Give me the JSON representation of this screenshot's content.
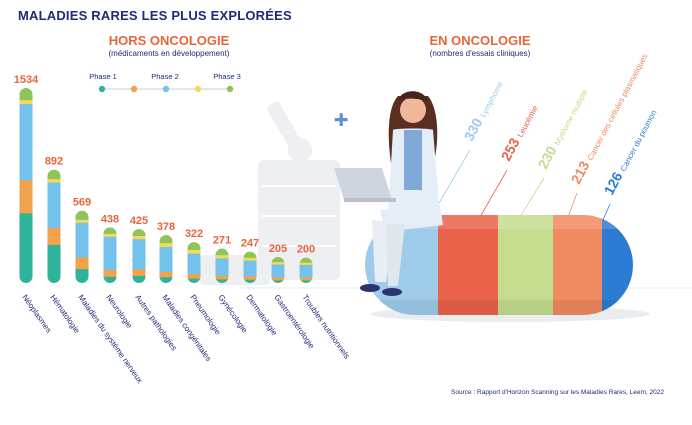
{
  "title": "MALADIES RARES LES PLUS EXPLORÉES",
  "source": "Source : Rapport d'Horizon Scanning sur les Maladies Rares, Leem, 2022",
  "colors": {
    "phase1": "#2fb39b",
    "phase2": "#f2a24b",
    "phase3": "#72c2ec",
    "phase4": "#f6d95a",
    "phase5": "#8ec45a",
    "value": "#e8653a",
    "text": "#1f2a7a"
  },
  "chart_data": [
    {
      "type": "bar",
      "title": "HORS ONCOLOGIE",
      "subtitle": "(médicaments en développement)",
      "legend": [
        "Phase 1",
        "Phase 2",
        "Phase 3"
      ],
      "legend_placement": "top",
      "categories": [
        "Néoplasmes",
        "Hématologie",
        "Maladies du système nerveux",
        "Neurologie",
        "Autres pathologies",
        "Maladies congénitales",
        "Pneumologie",
        "Gynécologie",
        "Dermatologie",
        "Gastroentérologie",
        "Troubles nutritionnels"
      ],
      "values": [
        1534,
        892,
        569,
        438,
        425,
        378,
        322,
        271,
        247,
        205,
        200
      ],
      "segments": [
        [
          0.36,
          0.17,
          0.39,
          0.02,
          0.06
        ],
        [
          0.34,
          0.15,
          0.4,
          0.03,
          0.08
        ],
        [
          0.2,
          0.16,
          0.48,
          0.04,
          0.12
        ],
        [
          0.12,
          0.12,
          0.6,
          0.05,
          0.11
        ],
        [
          0.14,
          0.12,
          0.56,
          0.06,
          0.12
        ],
        [
          0.13,
          0.11,
          0.52,
          0.08,
          0.16
        ],
        [
          0.12,
          0.11,
          0.5,
          0.09,
          0.18
        ],
        [
          0.12,
          0.11,
          0.5,
          0.09,
          0.18
        ],
        [
          0.12,
          0.11,
          0.5,
          0.09,
          0.18
        ],
        [
          0.12,
          0.11,
          0.5,
          0.09,
          0.18
        ],
        [
          0.12,
          0.11,
          0.5,
          0.09,
          0.18
        ]
      ]
    },
    {
      "type": "bar",
      "title": "EN ONCOLOGIE",
      "subtitle": "(nombres d'essais cliniques)",
      "categories": [
        "Lymphome",
        "Leucémie",
        "Myélome multiple",
        "Cancer des cellules plasmatiques",
        "Cancer du poumon"
      ],
      "values": [
        330,
        253,
        230,
        213,
        126
      ],
      "colors": [
        "#9ecbea",
        "#e9624a",
        "#c3dc8d",
        "#f08a60",
        "#2e7bd4"
      ]
    }
  ]
}
